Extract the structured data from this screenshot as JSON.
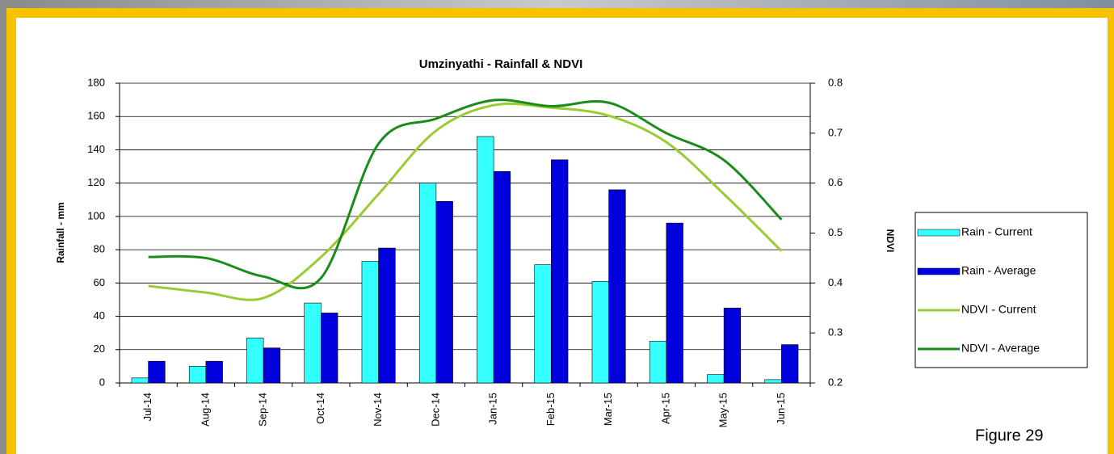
{
  "chart_data": {
    "type": "bar-line",
    "title": "Umzinyathi - Rainfall & NDVI",
    "y_label": "Rainfall - mm",
    "y2_label": "NDVI",
    "figure_label": "Figure 29",
    "categories": [
      "Jul-14",
      "Aug-14",
      "Sep-14",
      "Oct-14",
      "Nov-14",
      "Dec-14",
      "Jan-15",
      "Feb-15",
      "Mar-15",
      "Apr-15",
      "May-15",
      "Jun-15"
    ],
    "series": [
      {
        "name": "Rain - Current",
        "type": "bar",
        "color": "#33ffff",
        "values": [
          3,
          10,
          27,
          48,
          73,
          120,
          148,
          71,
          61,
          25,
          5,
          2
        ]
      },
      {
        "name": "Rain - Average",
        "type": "bar",
        "color": "#0000dd",
        "values": [
          13,
          13,
          21,
          42,
          81,
          109,
          127,
          134,
          116,
          96,
          45,
          23
        ]
      },
      {
        "name": "NDVI - Current",
        "type": "line",
        "axis": "y2",
        "color": "#99cc33",
        "values": [
          0.394,
          0.381,
          0.37,
          0.452,
          0.578,
          0.705,
          0.756,
          0.751,
          0.735,
          0.682,
          0.578,
          0.464
        ]
      },
      {
        "name": "NDVI - Average",
        "type": "line",
        "axis": "y2",
        "color": "#1a8c1a",
        "values": [
          0.452,
          0.45,
          0.413,
          0.41,
          0.679,
          0.729,
          0.766,
          0.754,
          0.761,
          0.7,
          0.646,
          0.527
        ]
      }
    ],
    "ylim": [
      0,
      180
    ],
    "yticks": [
      0,
      20,
      40,
      60,
      80,
      100,
      120,
      140,
      160,
      180
    ],
    "y2lim": [
      0.2,
      0.8
    ],
    "y2ticks": [
      0.2,
      0.3,
      0.4,
      0.5,
      0.6,
      0.7,
      0.8
    ],
    "grid": true,
    "legend": "right"
  }
}
